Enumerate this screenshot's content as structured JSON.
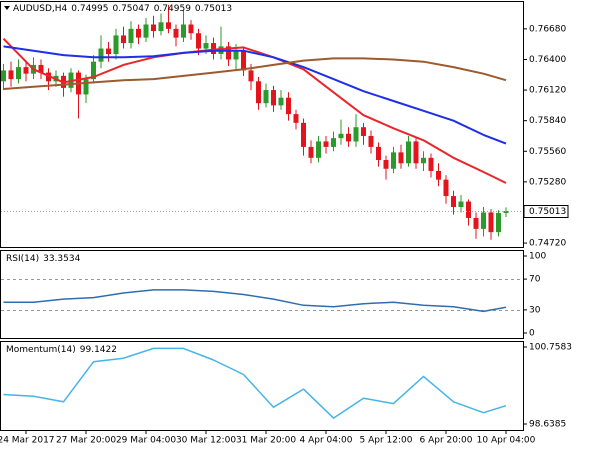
{
  "chart_data": [
    {
      "type": "candlestick",
      "title": "AUDUSD,H4",
      "categories": [
        null,
        null,
        null,
        "24 Mar 2017",
        null,
        null,
        null,
        null,
        null,
        null,
        null,
        "27 Mar 20:00",
        null,
        null,
        null,
        null,
        null,
        null,
        null,
        "29 Mar 04:00",
        null,
        null,
        null,
        null,
        null,
        null,
        null,
        "30 Mar 12:00",
        null,
        null,
        null,
        null,
        null,
        null,
        null,
        "31 Mar 20:00",
        null,
        null,
        null,
        null,
        null,
        null,
        null,
        "4 Apr 04:00",
        null,
        null,
        null,
        null,
        null,
        null,
        null,
        "5 Apr 12:00",
        null,
        null,
        null,
        null,
        null,
        null,
        null,
        "6 Apr 20:00",
        null,
        null,
        null,
        null,
        null,
        null,
        null,
        "10 Apr 04:00"
      ],
      "open": [
        0.762,
        0.763,
        0.7622,
        0.7633,
        0.7627,
        0.7635,
        0.7628,
        0.762,
        0.7625,
        0.7614,
        0.7628,
        0.7608,
        0.7622,
        0.7638,
        0.765,
        0.7645,
        0.7662,
        0.7655,
        0.7668,
        0.766,
        0.7672,
        0.7666,
        0.7674,
        0.7668,
        0.766,
        0.7672,
        0.7664,
        0.765,
        0.7655,
        0.7645,
        0.7652,
        0.764,
        0.7648,
        0.763,
        0.762,
        0.76,
        0.7612,
        0.7598,
        0.7605,
        0.759,
        0.7582,
        0.756,
        0.755,
        0.7565,
        0.756,
        0.7568,
        0.7572,
        0.7565,
        0.7578,
        0.757,
        0.756,
        0.7548,
        0.754,
        0.7555,
        0.7545,
        0.7565,
        0.7545,
        0.755,
        0.7538,
        0.753,
        0.7515,
        0.7505,
        0.751,
        0.7495,
        0.7485,
        0.75,
        0.7482,
        0.74995
      ],
      "high": [
        0.7636,
        0.7638,
        0.764,
        0.7638,
        0.7642,
        0.764,
        0.7632,
        0.763,
        0.7628,
        0.7632,
        0.763,
        0.7626,
        0.7644,
        0.7662,
        0.7656,
        0.7668,
        0.767,
        0.7675,
        0.7672,
        0.7678,
        0.768,
        0.7682,
        0.769,
        0.7672,
        0.7685,
        0.7676,
        0.7668,
        0.7662,
        0.766,
        0.767,
        0.7656,
        0.7654,
        0.7652,
        0.7636,
        0.7624,
        0.7618,
        0.7616,
        0.7612,
        0.761,
        0.7594,
        0.7586,
        0.7566,
        0.757,
        0.757,
        0.7574,
        0.7585,
        0.7578,
        0.759,
        0.7582,
        0.7575,
        0.7564,
        0.7552,
        0.756,
        0.7562,
        0.757,
        0.7568,
        0.7556,
        0.7554,
        0.7545,
        0.7534,
        0.752,
        0.7516,
        0.7512,
        0.75,
        0.7505,
        0.7503,
        0.7502,
        0.75047
      ],
      "low": [
        0.7612,
        0.7615,
        0.7618,
        0.762,
        0.7622,
        0.7622,
        0.7612,
        0.7615,
        0.7606,
        0.761,
        0.7586,
        0.76,
        0.7618,
        0.7632,
        0.7638,
        0.764,
        0.765,
        0.765,
        0.7654,
        0.7656,
        0.766,
        0.7662,
        0.7664,
        0.7652,
        0.7656,
        0.7658,
        0.7644,
        0.7645,
        0.764,
        0.764,
        0.7634,
        0.763,
        0.7625,
        0.7612,
        0.7594,
        0.7596,
        0.7592,
        0.7594,
        0.7584,
        0.7576,
        0.7552,
        0.7545,
        0.7546,
        0.7554,
        0.7556,
        0.7562,
        0.756,
        0.756,
        0.7562,
        0.7554,
        0.7542,
        0.753,
        0.7536,
        0.754,
        0.7542,
        0.754,
        0.7538,
        0.7532,
        0.7524,
        0.7508,
        0.7498,
        0.75,
        0.7488,
        0.7476,
        0.7478,
        0.7475,
        0.7478,
        0.74959
      ],
      "close": [
        0.763,
        0.7622,
        0.7633,
        0.7627,
        0.7635,
        0.7628,
        0.762,
        0.7625,
        0.7614,
        0.7628,
        0.7608,
        0.7622,
        0.7638,
        0.765,
        0.7645,
        0.7662,
        0.7655,
        0.7668,
        0.766,
        0.7672,
        0.7666,
        0.7674,
        0.7668,
        0.766,
        0.7672,
        0.7664,
        0.765,
        0.7655,
        0.7645,
        0.7652,
        0.764,
        0.7648,
        0.763,
        0.762,
        0.76,
        0.7612,
        0.7598,
        0.7605,
        0.759,
        0.7582,
        0.756,
        0.755,
        0.7565,
        0.756,
        0.7568,
        0.7572,
        0.7565,
        0.7578,
        0.757,
        0.756,
        0.7548,
        0.754,
        0.7555,
        0.7545,
        0.7565,
        0.7545,
        0.755,
        0.7538,
        0.753,
        0.7515,
        0.7505,
        0.751,
        0.7495,
        0.7485,
        0.75,
        0.7482,
        0.74995,
        0.75013
      ],
      "up_color": "#2a9a2a",
      "down_color": "#e3141c",
      "series": [
        {
          "color": "#e8262b",
          "x": [
            0,
            4,
            8,
            12,
            16,
            20,
            24,
            28,
            32,
            36,
            40,
            44,
            48,
            52,
            56,
            60,
            64,
            67
          ],
          "values": [
            0.7659,
            0.7631,
            0.7619,
            0.7624,
            0.7635,
            0.7642,
            0.7646,
            0.7649,
            0.7651,
            0.7642,
            0.7631,
            0.761,
            0.7589,
            0.7577,
            0.7566,
            0.755,
            0.7537,
            0.7527
          ]
        },
        {
          "color": "#1f2ee8",
          "x": [
            0,
            4,
            8,
            12,
            16,
            20,
            24,
            28,
            32,
            36,
            40,
            44,
            48,
            52,
            56,
            60,
            64,
            67
          ],
          "values": [
            0.7652,
            0.7648,
            0.7644,
            0.7642,
            0.7642,
            0.7643,
            0.7646,
            0.7648,
            0.7648,
            0.7642,
            0.7633,
            0.7622,
            0.7611,
            0.7602,
            0.7593,
            0.7584,
            0.7571,
            0.7563
          ]
        },
        {
          "color": "#9c5a2e",
          "x": [
            0,
            4,
            8,
            12,
            16,
            20,
            24,
            28,
            32,
            36,
            40,
            44,
            48,
            52,
            56,
            60,
            64,
            67
          ],
          "values": [
            0.7613,
            0.7615,
            0.7617,
            0.7619,
            0.7621,
            0.7622,
            0.7625,
            0.7628,
            0.7631,
            0.7635,
            0.7639,
            0.7641,
            0.7641,
            0.764,
            0.7638,
            0.7633,
            0.7627,
            0.7621
          ]
        }
      ],
      "ylim": [
        0.74684,
        0.76935
      ],
      "yticks": [
        {
          "value": 0.7668,
          "label": "0.76680"
        },
        {
          "value": 0.764,
          "label": "0.76400"
        },
        {
          "value": 0.7612,
          "label": "0.76120"
        },
        {
          "value": 0.7584,
          "label": "0.75840"
        },
        {
          "value": 0.7556,
          "label": "0.75560"
        },
        {
          "value": 0.7528,
          "label": "0.75280"
        },
        {
          "value": 0.7472,
          "label": "0.74720"
        }
      ]
    },
    {
      "type": "line",
      "title": "RSI(14)",
      "series": [
        {
          "color": "#2f6db0",
          "x": [
            0,
            4,
            8,
            12,
            16,
            20,
            24,
            28,
            32,
            36,
            40,
            44,
            48,
            52,
            56,
            60,
            64,
            67
          ],
          "values": [
            40,
            40,
            44,
            46,
            52,
            56,
            56,
            54,
            50,
            44,
            36,
            34,
            38,
            40,
            36,
            34,
            28,
            33.3534
          ]
        }
      ],
      "ylim": [
        -6.5,
        107.8
      ],
      "yticks": [
        100,
        70,
        30,
        0
      ],
      "levels": [
        70,
        30
      ]
    },
    {
      "type": "line",
      "title": "Momentum(14)",
      "series": [
        {
          "color": "#45b4e6",
          "x": [
            0,
            4,
            8,
            12,
            16,
            20,
            24,
            28,
            32,
            36,
            40,
            44,
            48,
            52,
            56,
            60,
            64,
            67
          ],
          "values": [
            99.45,
            99.4,
            99.25,
            100.35,
            100.45,
            100.72,
            100.72,
            100.4,
            100.0,
            99.1,
            99.6,
            98.8,
            99.35,
            99.2,
            99.95,
            99.25,
            98.95,
            99.1422
          ]
        }
      ],
      "ylim": [
        98.4733,
        100.9235
      ],
      "yticks": [
        100.7583,
        98.6385
      ]
    }
  ]
}
